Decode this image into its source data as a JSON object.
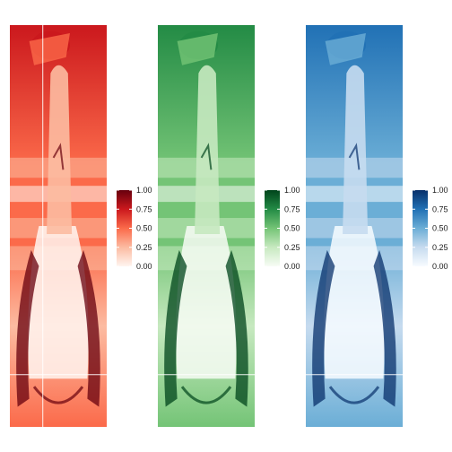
{
  "chart_data": {
    "type": "heatmap",
    "title": "",
    "panels": [
      {
        "channel": "red",
        "colormap": [
          "#fff5f0",
          "#fcbba1",
          "#fb6a4a",
          "#cb181d",
          "#67000d"
        ],
        "colorbar": {
          "min": 0.0,
          "max": 1.0,
          "ticks": [
            "1.00",
            "0.75",
            "0.50",
            "0.25",
            "0.00"
          ]
        }
      },
      {
        "channel": "green",
        "colormap": [
          "#f7fcf5",
          "#c7e9c0",
          "#74c476",
          "#238b45",
          "#00441b"
        ],
        "colorbar": {
          "min": 0.0,
          "max": 1.0,
          "ticks": [
            "1.00",
            "0.75",
            "0.50",
            "0.25",
            "0.00"
          ]
        }
      },
      {
        "channel": "blue",
        "colormap": [
          "#f7fbff",
          "#c6dbef",
          "#6baed6",
          "#2171b5",
          "#08306b"
        ],
        "colorbar": {
          "min": 0.0,
          "max": 1.0,
          "ticks": [
            "1.00",
            "0.75",
            "0.50",
            "0.25",
            "0.00"
          ]
        }
      }
    ],
    "image_content": "photo-of-goose-channel-intensity",
    "grid": false,
    "legend": "right-of-each-panel"
  }
}
